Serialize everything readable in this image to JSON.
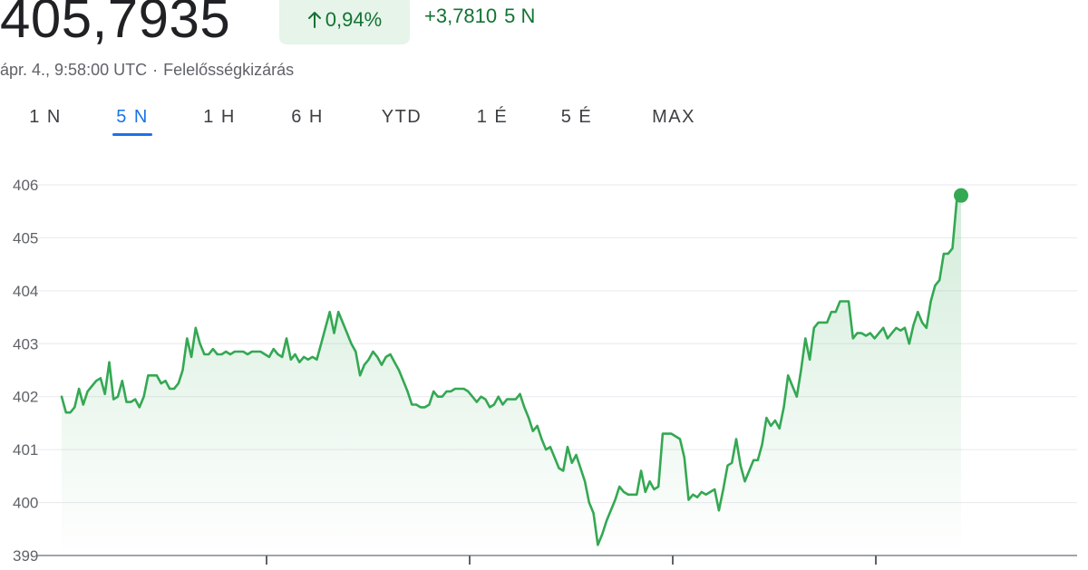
{
  "header": {
    "price": "405,7935",
    "change_percent": "0,94%",
    "change_value": "+3,7810",
    "change_period": "5 N",
    "timestamp": "ápr. 4., 9:58:00 UTC",
    "separator": "·",
    "disclaimer": "Felelősségkizárás",
    "arrow_icon": "arrow-up-icon"
  },
  "tabs": [
    {
      "label": "1 N",
      "active": false
    },
    {
      "label": "5 N",
      "active": true
    },
    {
      "label": "1 H",
      "active": false
    },
    {
      "label": "6 H",
      "active": false
    },
    {
      "label": "YTD",
      "active": false
    },
    {
      "label": "1 É",
      "active": false
    },
    {
      "label": "5 É",
      "active": false
    },
    {
      "label": "MAX",
      "active": false
    }
  ],
  "colors": {
    "line": "#34a853",
    "badge_bg": "#e6f4ea",
    "positive_text": "#137333",
    "active_tab": "#1a73e8",
    "grid": "#e8eaed"
  },
  "chart_data": {
    "type": "area",
    "ylim": [
      399,
      406
    ],
    "yticks": [
      "399",
      "400",
      "401",
      "402",
      "403",
      "404",
      "405",
      "406"
    ],
    "grid": true,
    "x_ticks_count": 4,
    "values": [
      402.0,
      401.7,
      401.7,
      401.8,
      402.15,
      401.85,
      402.1,
      402.2,
      402.3,
      402.35,
      402.05,
      402.65,
      401.95,
      402.0,
      402.3,
      401.9,
      401.9,
      401.95,
      401.8,
      402.0,
      402.4,
      402.4,
      402.4,
      402.25,
      402.3,
      402.15,
      402.15,
      402.25,
      402.5,
      403.1,
      402.75,
      403.3,
      403.0,
      402.8,
      402.8,
      402.9,
      402.8,
      402.8,
      402.85,
      402.8,
      402.85,
      402.85,
      402.85,
      402.8,
      402.85,
      402.85,
      402.85,
      402.8,
      402.75,
      402.9,
      402.8,
      402.75,
      403.1,
      402.7,
      402.8,
      402.65,
      402.75,
      402.7,
      402.75,
      402.7,
      403.0,
      403.3,
      403.6,
      403.2,
      403.6,
      403.4,
      403.2,
      403.0,
      402.85,
      402.4,
      402.6,
      402.7,
      402.85,
      402.75,
      402.6,
      402.75,
      402.8,
      402.65,
      402.5,
      402.3,
      402.1,
      401.85,
      401.85,
      401.8,
      401.8,
      401.85,
      402.1,
      402.0,
      402.0,
      402.1,
      402.1,
      402.15,
      402.15,
      402.15,
      402.1,
      402.0,
      401.9,
      402.0,
      401.95,
      401.8,
      401.85,
      402.0,
      401.85,
      401.95,
      401.95,
      401.95,
      402.05,
      401.8,
      401.6,
      401.35,
      401.45,
      401.2,
      401.0,
      401.05,
      400.85,
      400.65,
      400.6,
      401.05,
      400.75,
      400.9,
      400.65,
      400.4,
      400.0,
      399.8,
      399.2,
      399.4,
      399.65,
      399.85,
      400.05,
      400.3,
      400.2,
      400.15,
      400.15,
      400.15,
      400.6,
      400.2,
      400.4,
      400.25,
      400.3,
      401.3,
      401.3,
      401.3,
      401.25,
      401.2,
      400.85,
      400.05,
      400.15,
      400.1,
      400.2,
      400.15,
      400.2,
      400.25,
      399.85,
      400.25,
      400.7,
      400.75,
      401.2,
      400.7,
      400.4,
      400.6,
      400.8,
      400.8,
      401.1,
      401.6,
      401.45,
      401.55,
      401.4,
      401.8,
      402.4,
      402.2,
      402.0,
      402.5,
      403.1,
      402.7,
      403.3,
      403.4,
      403.4,
      403.4,
      403.6,
      403.6,
      403.8,
      403.8,
      403.8,
      403.1,
      403.2,
      403.2,
      403.15,
      403.2,
      403.1,
      403.2,
      403.3,
      403.1,
      403.2,
      403.3,
      403.25,
      403.3,
      403.0,
      403.35,
      403.6,
      403.4,
      403.3,
      403.8,
      404.1,
      404.2,
      404.7,
      404.7,
      404.8,
      405.7,
      405.8
    ]
  }
}
